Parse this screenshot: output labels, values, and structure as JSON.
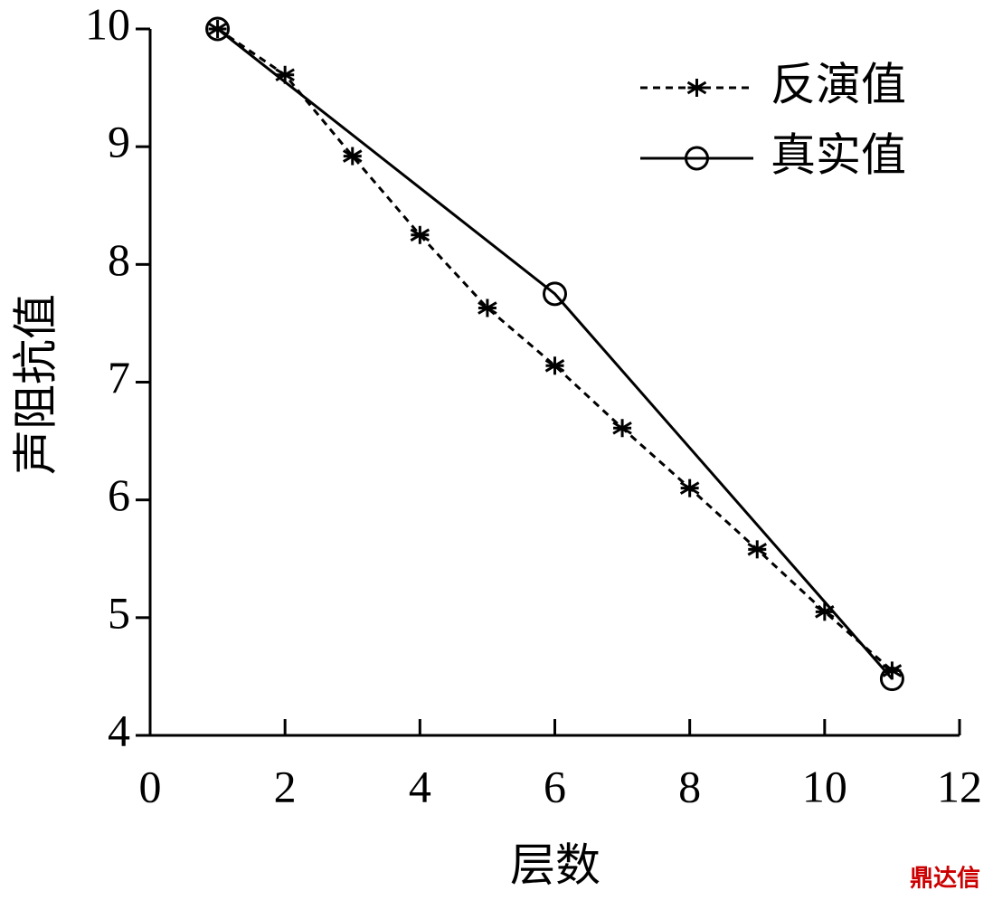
{
  "chart_data": {
    "type": "line",
    "xlabel": "层数",
    "ylabel": "声阻抗值",
    "xlim": [
      0,
      12
    ],
    "xticks": [
      0,
      2,
      4,
      6,
      8,
      10,
      12
    ],
    "ylim": [
      4,
      10
    ],
    "yticks": [
      4,
      5,
      6,
      7,
      8,
      9,
      10
    ],
    "legend": "upper right",
    "watermark": "鼎达信",
    "series": [
      {
        "name": "反演值",
        "color": "#000000",
        "dash": true,
        "marker": "asterisk",
        "x": [
          1,
          2,
          3,
          4,
          5,
          6,
          7,
          8,
          9,
          10,
          11
        ],
        "values": [
          10.0,
          9.61,
          8.92,
          8.25,
          7.63,
          7.14,
          6.61,
          6.1,
          5.58,
          5.05,
          4.55
        ]
      },
      {
        "name": "真实值",
        "color": "#000000",
        "dash": false,
        "marker": "circle",
        "x": [
          1,
          6,
          11
        ],
        "values": [
          10.0,
          7.75,
          4.48
        ]
      }
    ]
  }
}
